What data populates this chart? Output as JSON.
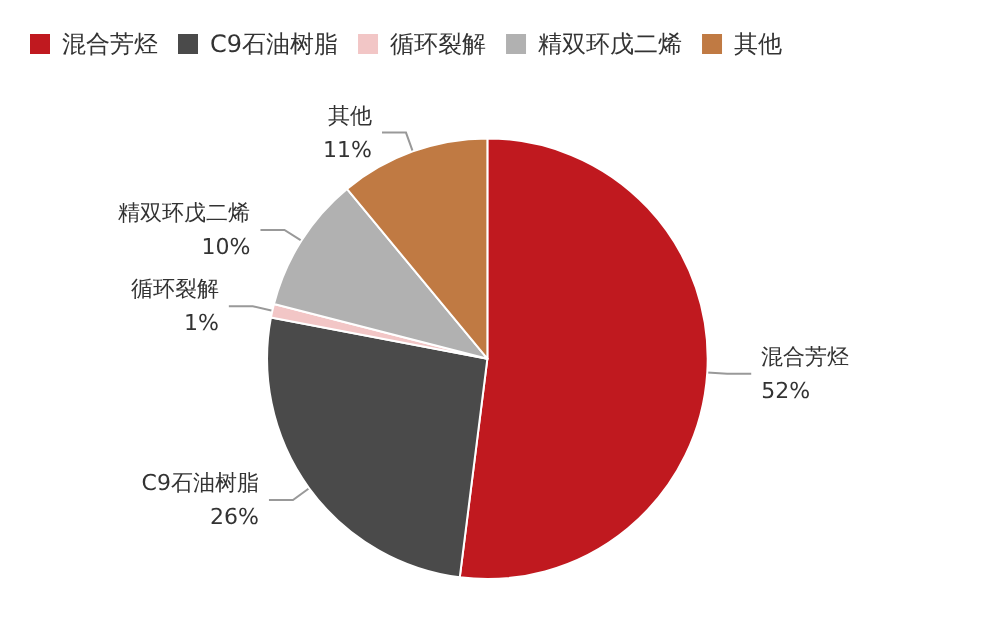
{
  "chart_data": {
    "type": "pie",
    "categories": [
      "混合芳烃",
      "C9石油树脂",
      "循环裂解",
      "精双环戊二烯",
      "其他"
    ],
    "values": [
      52,
      26,
      1,
      10,
      11
    ],
    "colors": [
      "#c0191f",
      "#4a4a4a",
      "#f2c6c6",
      "#b1b1b1",
      "#c07a43"
    ],
    "value_labels": [
      "52%",
      "26%",
      "1%",
      "10%",
      "11%"
    ],
    "legend": "top left"
  }
}
